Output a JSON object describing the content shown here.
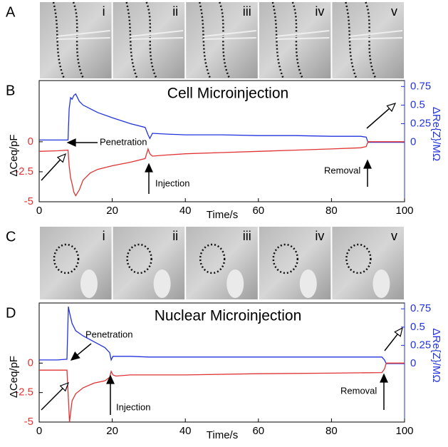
{
  "panels": [
    {
      "label": "A",
      "images": [
        "i",
        "ii",
        "iii",
        "iv",
        "v"
      ]
    },
    {
      "label": "C",
      "images": [
        "i",
        "ii",
        "iii",
        "iv",
        "v"
      ]
    }
  ],
  "chart_data": [
    {
      "type": "line",
      "panel_label": "B",
      "title": "Cell Microinjection",
      "xlabel": "Time/s",
      "ylabel": "ΔCeq/pF",
      "y2label": "ΔRe{Z}/MΩ",
      "xlim": [
        0,
        100
      ],
      "xticks": [
        0,
        20,
        40,
        60,
        80,
        100
      ],
      "ylim": [
        -5,
        5.1
      ],
      "yticks": [
        -5,
        -2.5,
        0
      ],
      "y2lim": [
        -0.8,
        0.83
      ],
      "y2ticks": [
        0,
        0.25,
        0.5,
        0.75
      ],
      "x": [
        0,
        5,
        7.9,
        8.2,
        8.6,
        9,
        9.5,
        10,
        11,
        12,
        14,
        16,
        20,
        25,
        29,
        29.8,
        30.3,
        31,
        35,
        40,
        50,
        60,
        70,
        80,
        88,
        89.5,
        90,
        95,
        100
      ],
      "series": [
        {
          "color": "#2233dd",
          "axis": "y2",
          "values": [
            0.03,
            0.03,
            0.03,
            0.45,
            0.6,
            0.58,
            0.63,
            0.65,
            0.55,
            0.5,
            0.45,
            0.4,
            0.33,
            0.25,
            0.2,
            0.1,
            0.05,
            0.12,
            0.11,
            0.1,
            0.1,
            0.09,
            0.09,
            0.08,
            0.08,
            0.07,
            0,
            0,
            0
          ]
        },
        {
          "color": "#e03333",
          "values": [
            -0.8,
            -0.75,
            -0.7,
            -2,
            -3,
            -3.5,
            -4.2,
            -4.5,
            -4,
            -3.2,
            -2.6,
            -2.3,
            -2,
            -1.7,
            -1.4,
            -0.6,
            -1,
            -1.2,
            -1.1,
            -1,
            -0.9,
            -0.8,
            -0.7,
            -0.6,
            -0.5,
            -0.4,
            0,
            0,
            0
          ]
        }
      ],
      "annotations": [
        "Penetration",
        "Injection",
        "Removal"
      ]
    },
    {
      "type": "line",
      "panel_label": "D",
      "title": "Nuclear Microinjection",
      "xlabel": "Time/s",
      "ylabel": "ΔCeq/pF",
      "y2label": "ΔRe{Z}/MΩ",
      "xlim": [
        0,
        100
      ],
      "xticks": [
        0,
        20,
        40,
        60,
        80,
        100
      ],
      "ylim": [
        -5,
        5.1
      ],
      "yticks": [
        -5,
        -2.5,
        0
      ],
      "y2lim": [
        -0.8,
        0.83
      ],
      "y2ticks": [
        0,
        0.25,
        0.5,
        0.75
      ],
      "x": [
        0,
        5,
        7.6,
        8,
        8.3,
        9,
        10,
        12,
        15,
        18,
        19.3,
        19.7,
        20.2,
        21,
        25,
        30,
        40,
        60,
        80,
        93.8,
        94.5,
        95,
        100
      ],
      "series": [
        {
          "color": "#2233dd",
          "axis": "y2",
          "values": [
            0.05,
            0.05,
            0.06,
            0.78,
            0.7,
            0.55,
            0.45,
            0.38,
            0.3,
            0.22,
            0.15,
            0.05,
            0.1,
            0.1,
            0.1,
            0.09,
            0.09,
            0.09,
            0.09,
            0.09,
            0.05,
            0,
            0
          ]
        },
        {
          "color": "#e03333",
          "values": [
            -0.6,
            -0.6,
            -0.6,
            -3,
            -5,
            -3.2,
            -2.6,
            -2.1,
            -1.7,
            -1.5,
            -1.2,
            -0.7,
            -1,
            -1.1,
            -1,
            -1,
            -1,
            -0.9,
            -0.85,
            -0.8,
            -0.5,
            0,
            0
          ]
        }
      ],
      "annotations": [
        "Penetration",
        "Injection",
        "Removal"
      ]
    }
  ]
}
